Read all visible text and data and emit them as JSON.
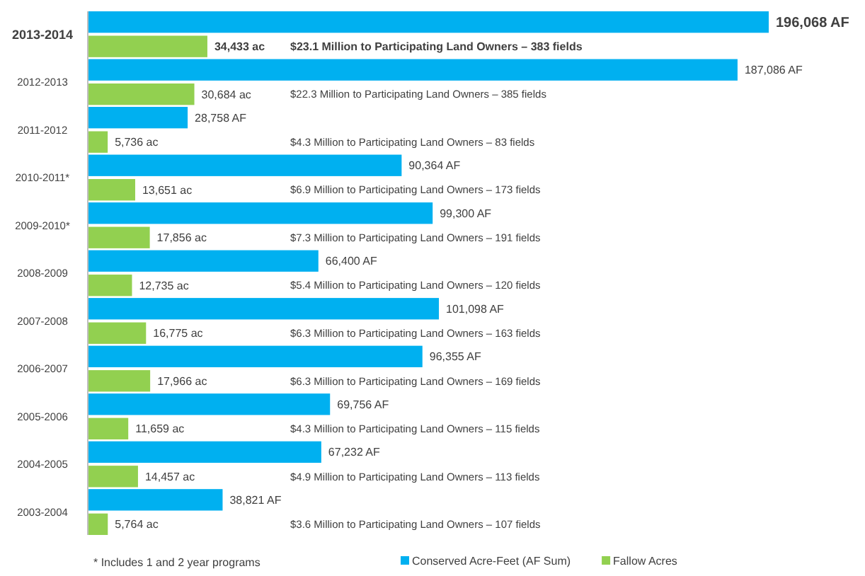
{
  "chart_data": {
    "type": "bar",
    "orientation": "horizontal",
    "categories": [
      "2013-2014",
      "2012-2013",
      "2011-2012",
      "2010-2011*",
      "2009-2010*",
      "2008-2009",
      "2007-2008",
      "2006-2007",
      "2005-2006",
      "2004-2005",
      "2003-2004"
    ],
    "series": [
      {
        "name": "Conserved Acre-Feet (AF Sum)",
        "color": "#00b0f0",
        "values": [
          196068,
          187086,
          28758,
          90364,
          99300,
          66400,
          101098,
          96355,
          69756,
          67232,
          38821
        ],
        "value_labels": [
          "196,068 AF",
          "187,086 AF",
          "28,758 AF",
          "90,364 AF",
          "99,300 AF",
          "66,400 AF",
          "101,098 AF",
          "96,355 AF",
          "69,756 AF",
          "67,232 AF",
          "38,821 AF"
        ]
      },
      {
        "name": "Fallow Acres",
        "color": "#92d050",
        "values": [
          34433,
          30684,
          5736,
          13651,
          17856,
          12735,
          16775,
          17966,
          11659,
          14457,
          5764
        ],
        "value_labels": [
          "34,433 ac",
          "30,684 ac",
          "5,736 ac",
          "13,651 ac",
          "17,856 ac",
          "12,735 ac",
          "16,775 ac",
          "17,966 ac",
          "11,659 ac",
          "14,457 ac",
          "5,764 ac"
        ]
      }
    ],
    "legend": "bottom right",
    "annotations": [
      "$23.1 Million to Participating Land Owners – 383 fields",
      "$22.3 Million to Participating Land Owners – 385 fields",
      "$4.3 Million to Participating Land Owners – 83 fields",
      "$6.9 Million to Participating Land Owners – 173 fields",
      "$7.3 Million to Participating Land Owners – 191 fields",
      "$5.4 Million to Participating Land Owners – 120 fields",
      "$6.3 Million to Participating Land Owners – 163 fields",
      "$6.3 Million to Participating Land Owners – 169 fields",
      "$4.3 Million to Participating Land Owners – 115 fields",
      "$4.9 Million to Participating Land Owners – 113 fields",
      "$3.6 Million to Participating Land Owners – 107 fields",
      "* Includes 1 and 2 year programs"
    ]
  }
}
